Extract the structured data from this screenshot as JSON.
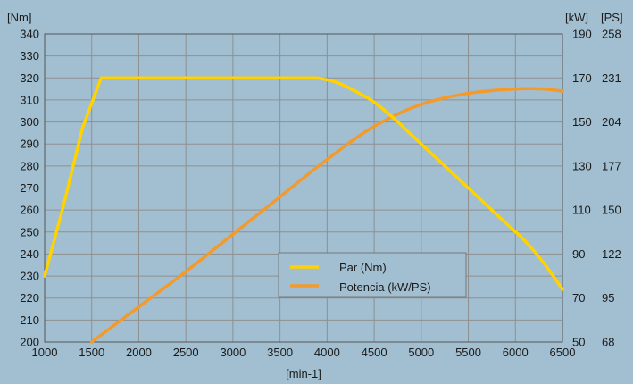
{
  "colors": {
    "background": "#a2bfd1",
    "grid": "#8f8f8f",
    "torque": "#ffd200",
    "power": "#f39a2b"
  },
  "chart_data": {
    "type": "line",
    "x_label": "[min-1]",
    "x_range": [
      1000,
      6500
    ],
    "x_ticks": [
      "1000",
      "1500",
      "2000",
      "2500",
      "3000",
      "3500",
      "4000",
      "4500",
      "5000",
      "5500",
      "6000",
      "6500"
    ],
    "y_left": {
      "unit": "[Nm]",
      "range": [
        200,
        340
      ],
      "ticks": [
        "200",
        "210",
        "220",
        "230",
        "240",
        "250",
        "260",
        "270",
        "280",
        "290",
        "300",
        "310",
        "320",
        "330",
        "340"
      ]
    },
    "y_right_kw": {
      "unit": "[kW]",
      "range": [
        50,
        190
      ],
      "ticks": [
        "50",
        "70",
        "90",
        "110",
        "130",
        "150",
        "170",
        "190"
      ]
    },
    "y_right_ps": {
      "unit": "[PS]",
      "ticks": [
        "68",
        "95",
        "122",
        "150",
        "177",
        "204",
        "231",
        "258"
      ]
    },
    "grid": true,
    "legend_position": "bottom-center",
    "series": [
      {
        "name": "Par (Nm)",
        "axis": "left",
        "color": "#ffd200",
        "points": [
          [
            1000,
            230
          ],
          [
            1200,
            262
          ],
          [
            1400,
            297
          ],
          [
            1600,
            320
          ],
          [
            2000,
            320
          ],
          [
            3000,
            320
          ],
          [
            3900,
            320
          ],
          [
            4100,
            318
          ],
          [
            4300,
            314
          ],
          [
            4500,
            309
          ],
          [
            4700,
            302
          ],
          [
            4900,
            294
          ],
          [
            5100,
            286
          ],
          [
            5300,
            278
          ],
          [
            5500,
            270
          ],
          [
            5700,
            262
          ],
          [
            5900,
            254
          ],
          [
            6100,
            246
          ],
          [
            6300,
            236
          ],
          [
            6500,
            224
          ]
        ]
      },
      {
        "name": "Potencia (kW/PS)",
        "axis": "right",
        "color": "#f39a2b",
        "points": [
          [
            1500,
            50
          ],
          [
            2000,
            66
          ],
          [
            2500,
            82
          ],
          [
            3000,
            99
          ],
          [
            3500,
            116
          ],
          [
            4000,
            133
          ],
          [
            4500,
            148
          ],
          [
            5000,
            158
          ],
          [
            5500,
            163
          ],
          [
            6000,
            165
          ],
          [
            6300,
            165
          ],
          [
            6500,
            164
          ]
        ]
      }
    ]
  }
}
